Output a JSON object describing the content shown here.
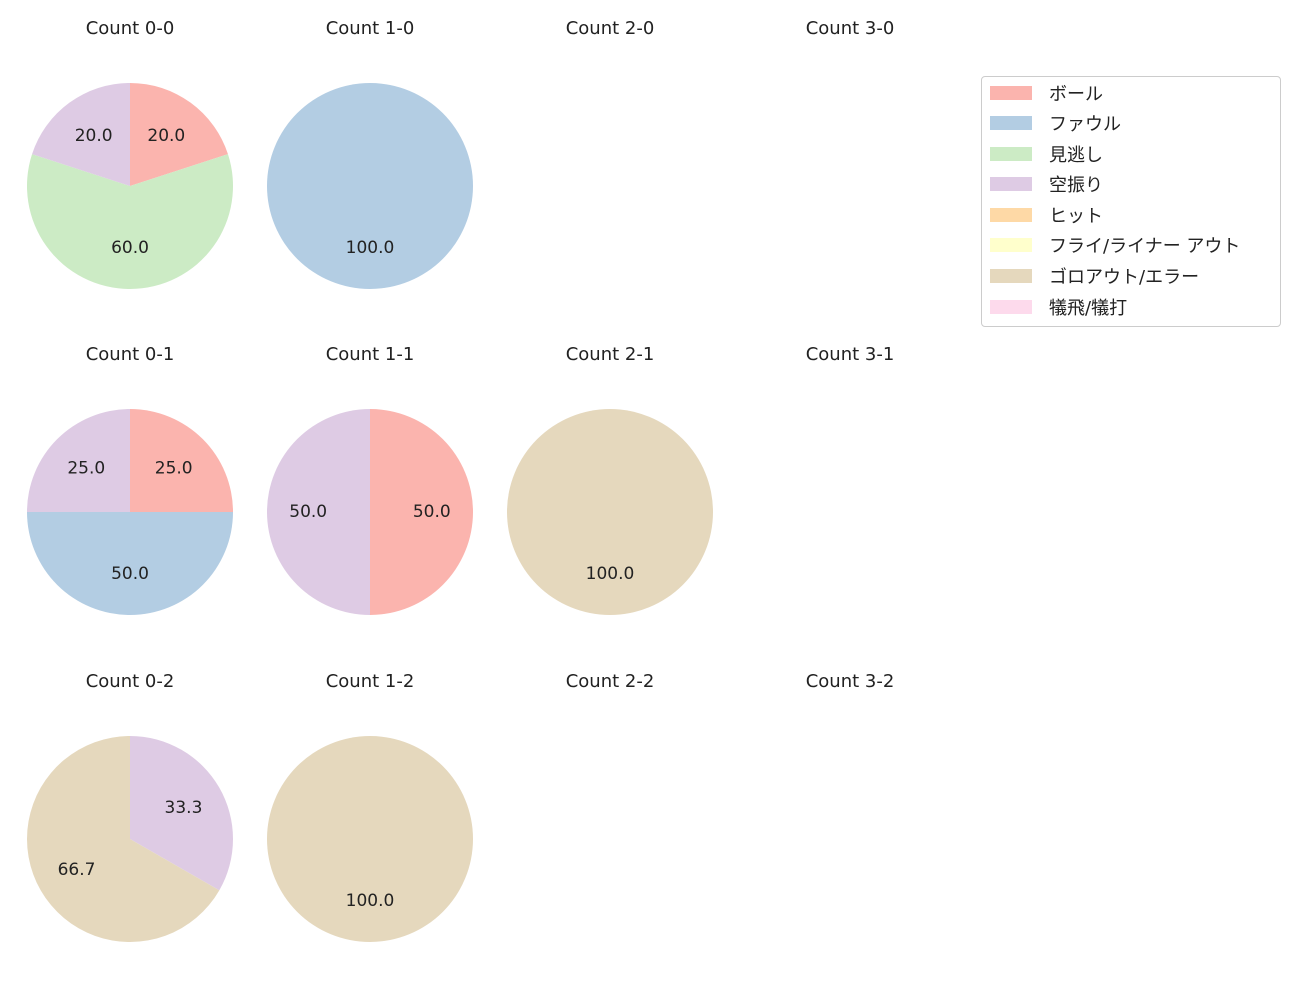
{
  "chart_data": {
    "type": "pie",
    "legend": {
      "placement": "top-right",
      "entries": [
        {
          "label": "ボール",
          "color": "#fbb4ae"
        },
        {
          "label": "ファウル",
          "color": "#b3cde3"
        },
        {
          "label": "見逃し",
          "color": "#ccebc5"
        },
        {
          "label": "空振り",
          "color": "#decbe4"
        },
        {
          "label": "ヒット",
          "color": "#fed9a6"
        },
        {
          "label": "フライ/ライナー アウト",
          "color": "#ffffcc"
        },
        {
          "label": "ゴロアウト/エラー",
          "color": "#e5d8bd"
        },
        {
          "label": "犠飛/犠打",
          "color": "#fddaec"
        }
      ]
    },
    "subplots": [
      {
        "title": "Count 0-0",
        "row": 0,
        "col": 0,
        "slices": [
          {
            "category": 0,
            "value": 20.0,
            "label": "20.0"
          },
          {
            "category": 2,
            "value": 60.0,
            "label": "60.0"
          },
          {
            "category": 3,
            "value": 20.0,
            "label": "20.0"
          }
        ]
      },
      {
        "title": "Count 1-0",
        "row": 0,
        "col": 1,
        "slices": [
          {
            "category": 1,
            "value": 100.0,
            "label": "100.0"
          }
        ]
      },
      {
        "title": "Count 2-0",
        "row": 0,
        "col": 2,
        "slices": []
      },
      {
        "title": "Count 3-0",
        "row": 0,
        "col": 3,
        "slices": []
      },
      {
        "title": "Count 0-1",
        "row": 1,
        "col": 0,
        "slices": [
          {
            "category": 0,
            "value": 25.0,
            "label": "25.0"
          },
          {
            "category": 1,
            "value": 50.0,
            "label": "50.0"
          },
          {
            "category": 3,
            "value": 25.0,
            "label": "25.0"
          }
        ]
      },
      {
        "title": "Count 1-1",
        "row": 1,
        "col": 1,
        "slices": [
          {
            "category": 0,
            "value": 50.0,
            "label": "50.0"
          },
          {
            "category": 3,
            "value": 50.0,
            "label": "50.0"
          }
        ]
      },
      {
        "title": "Count 2-1",
        "row": 1,
        "col": 2,
        "slices": [
          {
            "category": 6,
            "value": 100.0,
            "label": "100.0"
          }
        ]
      },
      {
        "title": "Count 3-1",
        "row": 1,
        "col": 3,
        "slices": []
      },
      {
        "title": "Count 0-2",
        "row": 2,
        "col": 0,
        "slices": [
          {
            "category": 3,
            "value": 33.3,
            "label": "33.3"
          },
          {
            "category": 6,
            "value": 66.7,
            "label": "66.7"
          }
        ]
      },
      {
        "title": "Count 1-2",
        "row": 2,
        "col": 1,
        "slices": [
          {
            "category": 6,
            "value": 100.0,
            "label": "100.0"
          }
        ]
      },
      {
        "title": "Count 2-2",
        "row": 2,
        "col": 2,
        "slices": []
      },
      {
        "title": "Count 3-2",
        "row": 2,
        "col": 3,
        "slices": []
      }
    ]
  }
}
